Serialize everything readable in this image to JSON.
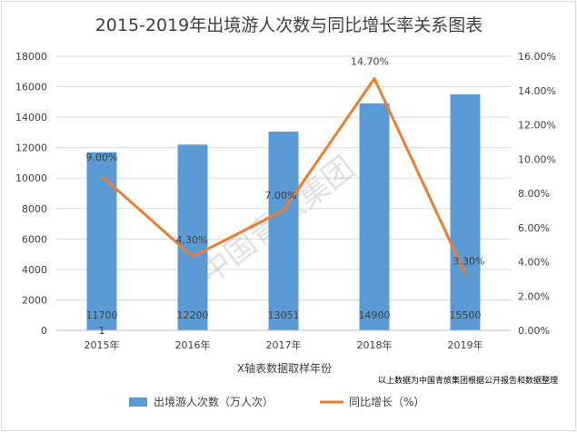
{
  "chart_data": {
    "type": "bar+line",
    "title": "2015-2019年出境游人次数与同比增长率关系图表",
    "xlabel": "X轴表数据取样年份",
    "categories": [
      "2015年",
      "2016年",
      "2017年",
      "2018年",
      "2019年"
    ],
    "series": [
      {
        "name": "出境游人次数（万人次）",
        "type": "bar",
        "axis": "left",
        "color": "#5b9bd5",
        "values": [
          11700,
          12200,
          13051,
          14900,
          15500
        ],
        "labels": [
          "11700",
          "12200",
          "13051",
          "14900",
          "15500"
        ]
      },
      {
        "name": "同比增长（%）",
        "type": "line",
        "axis": "right",
        "color": "#ed7d31",
        "values": [
          9.0,
          4.3,
          7.0,
          14.7,
          3.3
        ],
        "labels": [
          "9.00%",
          "4.30%",
          "7.00%",
          "14.70%",
          "3.30%"
        ]
      }
    ],
    "y_left": {
      "min": 0,
      "max": 18000,
      "step": 2000,
      "ticks": [
        "0",
        "2000",
        "4000",
        "6000",
        "8000",
        "10000",
        "12000",
        "14000",
        "16000",
        "18000"
      ]
    },
    "y_right": {
      "min": 0,
      "max": 16,
      "step": 2,
      "ticks": [
        "0.00%",
        "2.00%",
        "4.00%",
        "6.00%",
        "8.00%",
        "10.00%",
        "12.00%",
        "14.00%",
        "16.00%"
      ]
    },
    "stray_label": "1",
    "note": "以上数据为中国青旅集团根据公开报告和数据整理",
    "watermark": "中国青旅集团",
    "legend_position": "bottom",
    "grid": true
  }
}
